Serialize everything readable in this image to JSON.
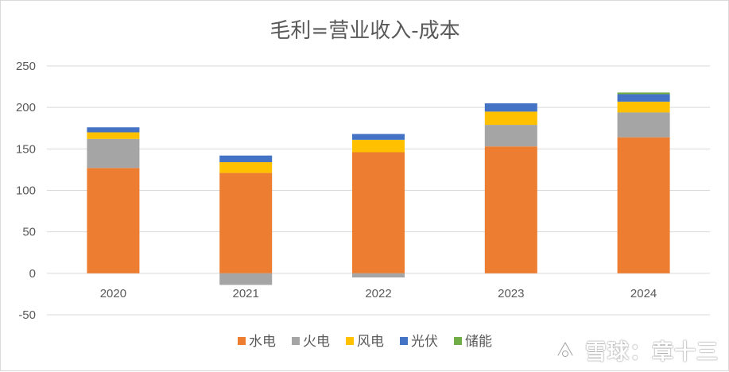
{
  "chart_data": {
    "type": "bar",
    "stacked": true,
    "title": "毛利=营业收入-成本",
    "categories": [
      "2020",
      "2021",
      "2022",
      "2023",
      "2024"
    ],
    "ylim": [
      -50,
      250
    ],
    "yticks": [
      -50,
      0,
      50,
      100,
      150,
      200,
      250
    ],
    "grid": true,
    "legend_position": "bottom",
    "series": [
      {
        "name": "水电",
        "color": "#ED7D31",
        "values": [
          127,
          121,
          146,
          153,
          164
        ]
      },
      {
        "name": "火电",
        "color": "#A5A5A5",
        "values": [
          35,
          -14,
          -5,
          26,
          30
        ]
      },
      {
        "name": "风电",
        "color": "#FFC000",
        "values": [
          8,
          13,
          15,
          16,
          13
        ]
      },
      {
        "name": "光伏",
        "color": "#4472C4",
        "values": [
          6,
          8,
          7,
          10,
          9
        ]
      },
      {
        "name": "储能",
        "color": "#70AD47",
        "values": [
          0,
          0,
          0,
          0,
          2
        ]
      }
    ]
  },
  "watermark": {
    "text": "雪球：章十三",
    "logo_icon": "snowball-logo-icon"
  }
}
